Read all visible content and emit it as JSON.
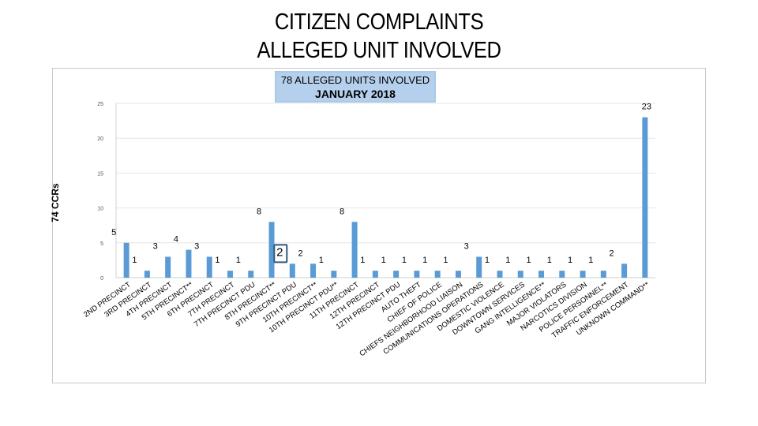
{
  "title_line1": "CITIZEN COMPLAINTS",
  "title_line2": "ALLEGED UNIT INVOLVED",
  "chart_data": {
    "type": "bar",
    "title": "78 ALLEGED UNITS INVOLVED",
    "subtitle": "JANUARY 2018",
    "ylabel": "74 CCRs",
    "xlabel": "",
    "ylim": [
      0,
      25
    ],
    "yticks": [
      0,
      5,
      10,
      15,
      20,
      25
    ],
    "grid": true,
    "categories": [
      "2ND PRECINCT",
      "3RD PRECINCT",
      "4TH PRECINCT",
      "5TH PRECINCT**",
      "6TH PRECINCT",
      "7TH PRECINCT",
      "7TH PRECINCT PDU",
      "8TH PRECINCT**",
      "9TH PRECINCT PDU",
      "10TH PRECINCT**",
      "10TH PRECINCT PDU**",
      "11TH PRECINCT",
      "12TH PRECINCT",
      "12TH PRECINCT PDU",
      "AUTO THEFT",
      "CHIEF OF POLICE",
      "CHIEFS NEIGHBORHOOD LIAISON",
      "COMMUNICATIONS OPERATIONS",
      "DOMESTIC VIOLENCE",
      "DOWNTOWN SERVICES",
      "GANG INTELLIGENCE**",
      "MAJOR VIOLATORS",
      "NARCOTICS DIVISION",
      "POLICE PERSONNEL**",
      "TRAFFIC ENFORCEMENT",
      "UNKNOWN COMMAND**"
    ],
    "values": [
      5,
      1,
      3,
      4,
      3,
      1,
      1,
      8,
      2,
      2,
      1,
      8,
      1,
      1,
      1,
      1,
      1,
      3,
      1,
      1,
      1,
      1,
      1,
      1,
      2,
      23
    ],
    "highlight_index": 8,
    "bar_color": "#5b9bd5",
    "highlight_border_color": "#2e5a7a"
  }
}
